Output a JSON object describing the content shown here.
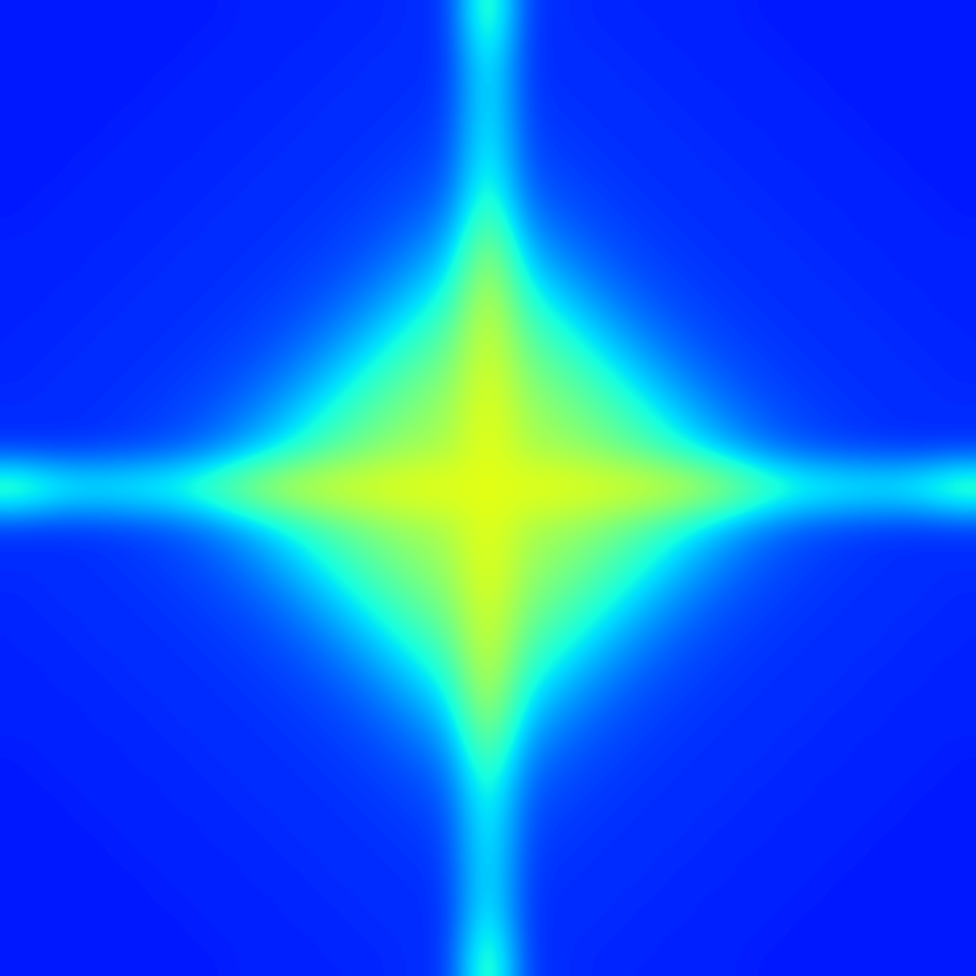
{
  "chart_data": {
    "type": "heatmap",
    "color": "jet",
    "tick_labels": false,
    "value_range": [
      0,
      1
    ],
    "cells": [
      [
        0.15,
        0.15,
        0.15,
        0.15,
        0.15,
        0.15,
        0.16,
        0.16,
        0.16,
        0.16,
        0.17,
        0.17,
        0.48,
        0.17,
        0.17,
        0.16,
        0.16,
        0.16,
        0.16,
        0.15,
        0.15,
        0.15,
        0.15,
        0.15,
        0.15
      ],
      [
        0.15,
        0.15,
        0.15,
        0.15,
        0.15,
        0.16,
        0.16,
        0.16,
        0.16,
        0.17,
        0.17,
        0.17,
        0.41,
        0.17,
        0.17,
        0.17,
        0.16,
        0.16,
        0.16,
        0.16,
        0.15,
        0.15,
        0.15,
        0.15,
        0.15
      ],
      [
        0.15,
        0.15,
        0.15,
        0.15,
        0.16,
        0.16,
        0.16,
        0.16,
        0.17,
        0.17,
        0.17,
        0.18,
        0.39,
        0.18,
        0.17,
        0.17,
        0.17,
        0.16,
        0.16,
        0.16,
        0.16,
        0.15,
        0.15,
        0.15,
        0.15
      ],
      [
        0.15,
        0.15,
        0.15,
        0.16,
        0.16,
        0.16,
        0.16,
        0.17,
        0.17,
        0.17,
        0.18,
        0.19,
        0.4,
        0.19,
        0.18,
        0.17,
        0.17,
        0.17,
        0.16,
        0.16,
        0.16,
        0.16,
        0.15,
        0.15,
        0.15
      ],
      [
        0.15,
        0.15,
        0.16,
        0.16,
        0.16,
        0.16,
        0.17,
        0.17,
        0.17,
        0.18,
        0.19,
        0.21,
        0.42,
        0.21,
        0.19,
        0.18,
        0.17,
        0.17,
        0.17,
        0.16,
        0.16,
        0.16,
        0.16,
        0.15,
        0.15
      ],
      [
        0.15,
        0.16,
        0.16,
        0.16,
        0.16,
        0.17,
        0.17,
        0.17,
        0.18,
        0.19,
        0.21,
        0.25,
        0.47,
        0.25,
        0.21,
        0.19,
        0.18,
        0.17,
        0.17,
        0.17,
        0.16,
        0.16,
        0.16,
        0.16,
        0.15
      ],
      [
        0.16,
        0.16,
        0.16,
        0.16,
        0.17,
        0.17,
        0.17,
        0.18,
        0.19,
        0.21,
        0.25,
        0.31,
        0.55,
        0.31,
        0.25,
        0.21,
        0.19,
        0.18,
        0.17,
        0.17,
        0.17,
        0.16,
        0.16,
        0.16,
        0.16
      ],
      [
        0.16,
        0.16,
        0.16,
        0.17,
        0.17,
        0.17,
        0.18,
        0.19,
        0.21,
        0.25,
        0.31,
        0.38,
        0.6,
        0.38,
        0.31,
        0.25,
        0.21,
        0.19,
        0.18,
        0.17,
        0.17,
        0.17,
        0.16,
        0.16,
        0.16
      ],
      [
        0.16,
        0.16,
        0.17,
        0.17,
        0.17,
        0.18,
        0.19,
        0.21,
        0.25,
        0.31,
        0.38,
        0.45,
        0.62,
        0.45,
        0.38,
        0.31,
        0.25,
        0.21,
        0.19,
        0.18,
        0.17,
        0.17,
        0.17,
        0.16,
        0.16
      ],
      [
        0.16,
        0.17,
        0.17,
        0.17,
        0.18,
        0.19,
        0.21,
        0.25,
        0.31,
        0.38,
        0.45,
        0.5,
        0.63,
        0.5,
        0.45,
        0.38,
        0.31,
        0.25,
        0.21,
        0.19,
        0.18,
        0.17,
        0.17,
        0.17,
        0.16
      ],
      [
        0.17,
        0.17,
        0.17,
        0.18,
        0.19,
        0.21,
        0.25,
        0.31,
        0.38,
        0.45,
        0.5,
        0.54,
        0.64,
        0.54,
        0.5,
        0.45,
        0.38,
        0.31,
        0.25,
        0.21,
        0.19,
        0.18,
        0.17,
        0.17,
        0.17
      ],
      [
        0.17,
        0.17,
        0.18,
        0.19,
        0.21,
        0.25,
        0.31,
        0.38,
        0.45,
        0.5,
        0.54,
        0.56,
        0.64,
        0.56,
        0.54,
        0.5,
        0.45,
        0.38,
        0.31,
        0.25,
        0.21,
        0.19,
        0.18,
        0.17,
        0.17
      ],
      [
        0.48,
        0.41,
        0.39,
        0.4,
        0.42,
        0.47,
        0.55,
        0.6,
        0.62,
        0.63,
        0.64,
        0.64,
        0.62,
        0.64,
        0.64,
        0.63,
        0.62,
        0.6,
        0.55,
        0.47,
        0.42,
        0.4,
        0.39,
        0.41,
        0.48
      ],
      [
        0.17,
        0.17,
        0.18,
        0.19,
        0.21,
        0.25,
        0.31,
        0.38,
        0.45,
        0.5,
        0.54,
        0.56,
        0.64,
        0.56,
        0.54,
        0.5,
        0.45,
        0.38,
        0.31,
        0.25,
        0.21,
        0.19,
        0.18,
        0.17,
        0.17
      ],
      [
        0.17,
        0.17,
        0.17,
        0.18,
        0.19,
        0.21,
        0.25,
        0.31,
        0.38,
        0.45,
        0.5,
        0.54,
        0.64,
        0.54,
        0.5,
        0.45,
        0.38,
        0.31,
        0.25,
        0.21,
        0.19,
        0.18,
        0.17,
        0.17,
        0.17
      ],
      [
        0.16,
        0.17,
        0.17,
        0.17,
        0.18,
        0.19,
        0.21,
        0.25,
        0.31,
        0.38,
        0.45,
        0.5,
        0.63,
        0.5,
        0.45,
        0.38,
        0.31,
        0.25,
        0.21,
        0.19,
        0.18,
        0.17,
        0.17,
        0.17,
        0.16
      ],
      [
        0.16,
        0.16,
        0.17,
        0.17,
        0.17,
        0.18,
        0.19,
        0.21,
        0.25,
        0.31,
        0.38,
        0.45,
        0.62,
        0.45,
        0.38,
        0.31,
        0.25,
        0.21,
        0.19,
        0.18,
        0.17,
        0.17,
        0.17,
        0.16,
        0.16
      ],
      [
        0.16,
        0.16,
        0.16,
        0.17,
        0.17,
        0.17,
        0.18,
        0.19,
        0.21,
        0.25,
        0.31,
        0.38,
        0.6,
        0.38,
        0.31,
        0.25,
        0.21,
        0.19,
        0.18,
        0.17,
        0.17,
        0.17,
        0.16,
        0.16,
        0.16
      ],
      [
        0.16,
        0.16,
        0.16,
        0.16,
        0.17,
        0.17,
        0.17,
        0.18,
        0.19,
        0.21,
        0.25,
        0.31,
        0.55,
        0.31,
        0.25,
        0.21,
        0.19,
        0.18,
        0.17,
        0.17,
        0.17,
        0.16,
        0.16,
        0.16,
        0.16
      ],
      [
        0.15,
        0.16,
        0.16,
        0.16,
        0.16,
        0.17,
        0.17,
        0.17,
        0.18,
        0.19,
        0.21,
        0.25,
        0.47,
        0.25,
        0.21,
        0.19,
        0.18,
        0.17,
        0.17,
        0.17,
        0.16,
        0.16,
        0.16,
        0.16,
        0.15
      ],
      [
        0.15,
        0.15,
        0.16,
        0.16,
        0.16,
        0.16,
        0.17,
        0.17,
        0.17,
        0.18,
        0.19,
        0.21,
        0.42,
        0.21,
        0.19,
        0.18,
        0.17,
        0.17,
        0.17,
        0.16,
        0.16,
        0.16,
        0.16,
        0.15,
        0.15
      ],
      [
        0.15,
        0.15,
        0.15,
        0.16,
        0.16,
        0.16,
        0.16,
        0.17,
        0.17,
        0.17,
        0.18,
        0.19,
        0.4,
        0.19,
        0.18,
        0.17,
        0.17,
        0.17,
        0.16,
        0.16,
        0.16,
        0.16,
        0.15,
        0.15,
        0.15
      ],
      [
        0.15,
        0.15,
        0.15,
        0.15,
        0.16,
        0.16,
        0.16,
        0.16,
        0.17,
        0.17,
        0.17,
        0.18,
        0.39,
        0.18,
        0.17,
        0.17,
        0.17,
        0.16,
        0.16,
        0.16,
        0.16,
        0.15,
        0.15,
        0.15,
        0.15
      ],
      [
        0.15,
        0.15,
        0.15,
        0.15,
        0.15,
        0.16,
        0.16,
        0.16,
        0.16,
        0.17,
        0.17,
        0.17,
        0.41,
        0.17,
        0.17,
        0.17,
        0.16,
        0.16,
        0.16,
        0.16,
        0.15,
        0.15,
        0.15,
        0.15,
        0.15
      ],
      [
        0.15,
        0.15,
        0.15,
        0.15,
        0.15,
        0.15,
        0.16,
        0.16,
        0.16,
        0.16,
        0.17,
        0.17,
        0.48,
        0.17,
        0.17,
        0.16,
        0.16,
        0.16,
        0.16,
        0.15,
        0.15,
        0.15,
        0.15,
        0.15,
        0.15
      ]
    ]
  }
}
